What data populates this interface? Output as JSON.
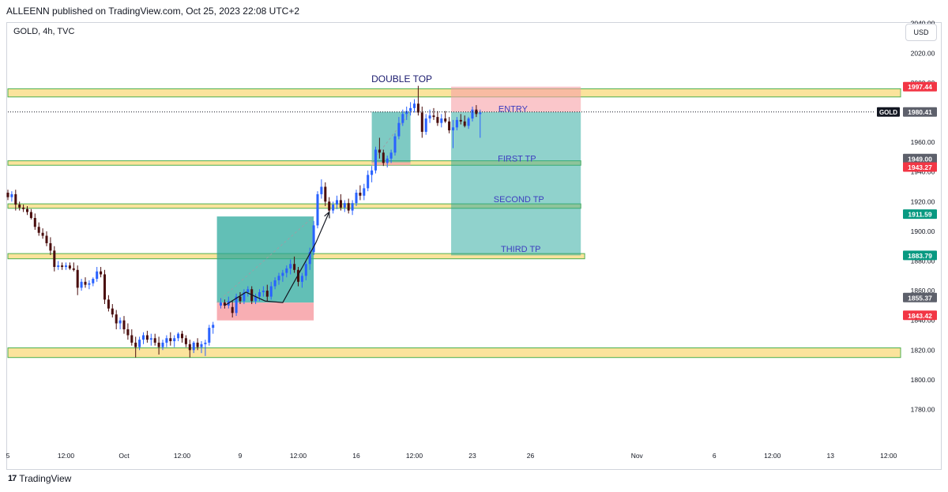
{
  "header": {
    "published": "ALLEENN published on TradingView.com, Oct 25, 2023 22:08 UTC+2"
  },
  "symbol_label": "GOLD, 4h, TVC",
  "currency_button": "USD",
  "footer": {
    "brand": "TradingView",
    "logo": "tv-logo-icon"
  },
  "chart_data": {
    "type": "candlestick",
    "symbol": "GOLD",
    "timeframe": "4h",
    "ylim": [
      1765,
      2052
    ],
    "yticks": [
      1780,
      1800,
      1820,
      1840,
      1860,
      1880,
      1900,
      1920,
      1940,
      1960,
      1980,
      2000,
      2020,
      2040
    ],
    "xticks": [
      {
        "label": "5",
        "x": 0
      },
      {
        "label": "12:00",
        "x": 3
      },
      {
        "label": "Oct",
        "x": 6
      },
      {
        "label": "12:00",
        "x": 9
      },
      {
        "label": "9",
        "x": 12
      },
      {
        "label": "12:00",
        "x": 15
      },
      {
        "label": "16",
        "x": 18
      },
      {
        "label": "12:00",
        "x": 21
      },
      {
        "label": "23",
        "x": 24
      },
      {
        "label": "26",
        "x": 27
      },
      {
        "label": "Nov",
        "x": 32.5
      },
      {
        "label": "6",
        "x": 36.5
      },
      {
        "label": "12:00",
        "x": 39.5
      },
      {
        "label": "13",
        "x": 42.5
      },
      {
        "label": "12:00",
        "x": 45.5
      }
    ],
    "candles": [
      [
        0.0,
        1926,
        1928,
        1921,
        1923
      ],
      [
        0.2,
        1923,
        1927,
        1920,
        1925
      ],
      [
        0.4,
        1925,
        1928,
        1914,
        1918
      ],
      [
        0.6,
        1918,
        1920,
        1914,
        1916
      ],
      [
        0.8,
        1916,
        1918,
        1913,
        1915
      ],
      [
        1.0,
        1915,
        1917,
        1911,
        1913
      ],
      [
        1.2,
        1913,
        1915,
        1908,
        1909
      ],
      [
        1.4,
        1909,
        1912,
        1901,
        1903
      ],
      [
        1.6,
        1903,
        1906,
        1897,
        1899
      ],
      [
        1.8,
        1899,
        1902,
        1895,
        1897
      ],
      [
        2.0,
        1897,
        1900,
        1890,
        1892
      ],
      [
        2.2,
        1892,
        1896,
        1884,
        1887
      ],
      [
        2.4,
        1887,
        1890,
        1873,
        1876
      ],
      [
        2.6,
        1876,
        1880,
        1874,
        1877
      ],
      [
        2.8,
        1877,
        1879,
        1874,
        1876
      ],
      [
        3.0,
        1876,
        1879,
        1874,
        1877
      ],
      [
        3.2,
        1877,
        1879,
        1874,
        1875
      ],
      [
        3.4,
        1875,
        1879,
        1873,
        1874
      ],
      [
        3.6,
        1874,
        1877,
        1857,
        1862
      ],
      [
        3.8,
        1862,
        1868,
        1860,
        1866
      ],
      [
        4.0,
        1866,
        1869,
        1862,
        1864
      ],
      [
        4.2,
        1864,
        1867,
        1861,
        1865
      ],
      [
        4.4,
        1865,
        1869,
        1863,
        1868
      ],
      [
        4.6,
        1868,
        1876,
        1866,
        1873
      ],
      [
        4.8,
        1873,
        1876,
        1869,
        1871
      ],
      [
        5.0,
        1871,
        1874,
        1851,
        1854
      ],
      [
        5.2,
        1854,
        1857,
        1846,
        1848
      ],
      [
        5.4,
        1848,
        1851,
        1842,
        1844
      ],
      [
        5.6,
        1844,
        1847,
        1834,
        1838
      ],
      [
        5.8,
        1838,
        1842,
        1834,
        1840
      ],
      [
        6.0,
        1840,
        1843,
        1831,
        1834
      ],
      [
        6.2,
        1834,
        1838,
        1827,
        1830
      ],
      [
        6.4,
        1830,
        1834,
        1823,
        1825
      ],
      [
        6.6,
        1825,
        1829,
        1815,
        1822
      ],
      [
        6.8,
        1822,
        1829,
        1820,
        1827
      ],
      [
        7.0,
        1827,
        1832,
        1824,
        1830
      ],
      [
        7.2,
        1830,
        1833,
        1825,
        1827
      ],
      [
        7.4,
        1827,
        1831,
        1823,
        1828
      ],
      [
        7.6,
        1828,
        1831,
        1823,
        1825
      ],
      [
        7.8,
        1825,
        1829,
        1817,
        1822
      ],
      [
        8.0,
        1822,
        1827,
        1820,
        1825
      ],
      [
        8.2,
        1825,
        1830,
        1822,
        1828
      ],
      [
        8.4,
        1828,
        1832,
        1823,
        1826
      ],
      [
        8.6,
        1826,
        1830,
        1822,
        1828
      ],
      [
        8.8,
        1828,
        1832,
        1826,
        1831
      ],
      [
        9.0,
        1831,
        1833,
        1825,
        1828
      ],
      [
        9.2,
        1828,
        1830,
        1822,
        1824
      ],
      [
        9.4,
        1824,
        1827,
        1815,
        1820
      ],
      [
        9.6,
        1820,
        1826,
        1818,
        1825
      ],
      [
        9.8,
        1825,
        1828,
        1820,
        1822
      ],
      [
        10.0,
        1822,
        1826,
        1818,
        1824
      ],
      [
        10.2,
        1824,
        1827,
        1816,
        1825
      ],
      [
        10.4,
        1825,
        1837,
        1823,
        1835
      ],
      [
        10.6,
        1835,
        1839,
        1831,
        1837
      ],
      [
        11.0,
        1850,
        1855,
        1848,
        1852
      ],
      [
        11.2,
        1852,
        1854,
        1848,
        1850
      ],
      [
        11.4,
        1850,
        1856,
        1848,
        1853
      ],
      [
        11.6,
        1849,
        1853,
        1842,
        1845
      ],
      [
        11.8,
        1845,
        1858,
        1843,
        1856
      ],
      [
        12.0,
        1856,
        1859,
        1851,
        1853
      ],
      [
        12.2,
        1853,
        1861,
        1851,
        1859
      ],
      [
        12.4,
        1859,
        1863,
        1856,
        1861
      ],
      [
        12.6,
        1861,
        1863,
        1851,
        1853
      ],
      [
        12.8,
        1853,
        1858,
        1851,
        1856
      ],
      [
        13.0,
        1856,
        1861,
        1853,
        1859
      ],
      [
        13.2,
        1859,
        1863,
        1856,
        1860
      ],
      [
        13.4,
        1860,
        1864,
        1853,
        1856
      ],
      [
        13.6,
        1856,
        1866,
        1854,
        1863
      ],
      [
        13.8,
        1863,
        1869,
        1861,
        1867
      ],
      [
        14.0,
        1867,
        1872,
        1864,
        1870
      ],
      [
        14.2,
        1870,
        1874,
        1866,
        1872
      ],
      [
        14.4,
        1872,
        1877,
        1869,
        1875
      ],
      [
        14.6,
        1875,
        1881,
        1871,
        1878
      ],
      [
        14.8,
        1878,
        1883,
        1872,
        1874
      ],
      [
        15.0,
        1874,
        1876,
        1863,
        1866
      ],
      [
        15.2,
        1866,
        1872,
        1862,
        1870
      ],
      [
        15.4,
        1870,
        1880,
        1867,
        1878
      ],
      [
        15.6,
        1878,
        1889,
        1874,
        1886
      ],
      [
        15.8,
        1886,
        1907,
        1884,
        1904
      ],
      [
        16.0,
        1904,
        1927,
        1902,
        1925
      ],
      [
        16.2,
        1925,
        1935,
        1922,
        1930
      ],
      [
        16.4,
        1930,
        1933,
        1917,
        1920
      ],
      [
        16.6,
        1920,
        1923,
        1912,
        1914
      ],
      [
        16.8,
        1914,
        1920,
        1912,
        1918
      ],
      [
        17.0,
        1918,
        1924,
        1915,
        1921
      ],
      [
        17.2,
        1921,
        1925,
        1914,
        1916
      ],
      [
        17.4,
        1916,
        1921,
        1913,
        1919
      ],
      [
        17.6,
        1919,
        1922,
        1912,
        1914
      ],
      [
        17.8,
        1914,
        1921,
        1911,
        1919
      ],
      [
        18.0,
        1919,
        1928,
        1917,
        1926
      ],
      [
        18.2,
        1926,
        1931,
        1921,
        1924
      ],
      [
        18.4,
        1924,
        1932,
        1921,
        1929
      ],
      [
        18.6,
        1929,
        1941,
        1927,
        1938
      ],
      [
        18.8,
        1938,
        1944,
        1933,
        1941
      ],
      [
        19.0,
        1941,
        1957,
        1939,
        1955
      ],
      [
        19.2,
        1955,
        1963,
        1949,
        1953
      ],
      [
        19.4,
        1953,
        1955,
        1944,
        1946
      ],
      [
        19.6,
        1946,
        1951,
        1943,
        1949
      ],
      [
        19.8,
        1949,
        1955,
        1946,
        1953
      ],
      [
        20.0,
        1953,
        1966,
        1951,
        1964
      ],
      [
        20.2,
        1964,
        1977,
        1962,
        1973
      ],
      [
        20.4,
        1973,
        1982,
        1971,
        1979
      ],
      [
        20.6,
        1979,
        1984,
        1975,
        1981
      ],
      [
        20.8,
        1981,
        1987,
        1978,
        1983
      ],
      [
        21.0,
        1983,
        1989,
        1980,
        1986
      ],
      [
        21.2,
        1986,
        1998,
        1978,
        1980
      ],
      [
        21.4,
        1980,
        1984,
        1963,
        1967
      ],
      [
        21.6,
        1967,
        1979,
        1965,
        1976
      ],
      [
        21.8,
        1976,
        1982,
        1973,
        1978
      ],
      [
        22.0,
        1978,
        1983,
        1975,
        1977
      ],
      [
        22.2,
        1977,
        1981,
        1971,
        1973
      ],
      [
        22.4,
        1973,
        1979,
        1970,
        1976
      ],
      [
        22.6,
        1976,
        1981,
        1973,
        1974
      ],
      [
        22.8,
        1974,
        1977,
        1966,
        1968
      ],
      [
        23.0,
        1968,
        1975,
        1956,
        1970
      ],
      [
        23.2,
        1970,
        1977,
        1968,
        1975
      ],
      [
        23.4,
        1975,
        1979,
        1972,
        1974
      ],
      [
        23.6,
        1974,
        1978,
        1970,
        1971
      ],
      [
        23.8,
        1971,
        1977,
        1969,
        1976
      ],
      [
        24.0,
        1976,
        1984,
        1974,
        1982
      ],
      [
        24.2,
        1982,
        1985,
        1977,
        1979
      ],
      [
        24.4,
        1979,
        1982,
        1963,
        1980
      ]
    ],
    "zones": [
      {
        "name": "resistance-zone",
        "y0": 1990.5,
        "y1": 1996,
        "x0": -1,
        "x1": 47.8,
        "color": "#fbe39c"
      },
      {
        "name": "first-tp-zone",
        "y0": 1944.5,
        "y1": 1947.5,
        "x0": -1,
        "x1": 29.6,
        "color": "#fbe39c"
      },
      {
        "name": "second-tp-zone",
        "y0": 1915.5,
        "y1": 1918.5,
        "x0": -1,
        "x1": 29.6,
        "color": "#fbe39c"
      },
      {
        "name": "third-tp-zone",
        "y0": 1881.5,
        "y1": 1885,
        "x0": -1,
        "x1": 29.8,
        "color": "#fbe39c"
      },
      {
        "name": "support-zone",
        "y0": 1815,
        "y1": 1821.5,
        "x0": -1,
        "x1": 47.8,
        "color": "#fbe39c"
      }
    ],
    "positions": [
      {
        "name": "long-position-1",
        "x0": 10.8,
        "x1": 15.8,
        "entry": 1852,
        "target": 1910,
        "stop": 1840,
        "opacity": 0.85
      },
      {
        "name": "long-position-2",
        "x0": 18.8,
        "x1": 20.8,
        "entry": 1946.5,
        "target": 1980.5,
        "stop": 1944.5,
        "opacity": 0.7
      },
      {
        "name": "short-position",
        "x0": 22.9,
        "x1": 29.6,
        "entry": 1980.41,
        "target": 1883.79,
        "stop": 1997.44,
        "opacity": 0.6
      }
    ],
    "path_points": [
      [
        11.2,
        1850
      ],
      [
        12.3,
        1859
      ],
      [
        13.3,
        1853
      ],
      [
        14.2,
        1852
      ],
      [
        15.9,
        1892
      ]
    ],
    "arrow_points": [
      [
        15.9,
        1892
      ],
      [
        16.6,
        1913
      ]
    ],
    "annotations": [
      {
        "text": "DOUBLE TOP",
        "x": 20.35,
        "y": 2000.5,
        "color": "#1a1a6e"
      },
      {
        "text": "ENTRY",
        "x": 26.1,
        "y": 1980.5,
        "color": "#3d3dbf"
      },
      {
        "text": "FIRST TP",
        "x": 26.3,
        "y": 1947,
        "color": "#3d3dbf"
      },
      {
        "text": "SECOND TP",
        "x": 26.4,
        "y": 1919.5,
        "color": "#3d3dbf"
      },
      {
        "text": "THIRD TP",
        "x": 26.5,
        "y": 1886,
        "color": "#3d3dbf"
      }
    ],
    "price_labels": [
      {
        "value": "1997.44",
        "y": 1997.44,
        "color": "#f23645"
      },
      {
        "value": "1980.41",
        "y": 1980.41,
        "color": "#5d606b"
      },
      {
        "value": "1949.00",
        "y": 1949.0,
        "color": "#5d606b"
      },
      {
        "value": "1943.27",
        "y": 1943.27,
        "color": "#f23645"
      },
      {
        "value": "1911.59",
        "y": 1911.59,
        "color": "#089981"
      },
      {
        "value": "1883.79",
        "y": 1883.79,
        "color": "#089981"
      },
      {
        "value": "1855.37",
        "y": 1855.37,
        "color": "#5d606b"
      },
      {
        "value": "1843.42",
        "y": 1843.42,
        "color": "#f23645"
      }
    ],
    "current_price": {
      "symbol_tag": "GOLD",
      "value": 1980.41
    },
    "colors": {
      "up": "#2962ff",
      "down": "#4a0e0e",
      "profit": "#26a69a",
      "loss": "#f7a0a6",
      "zone": "#fbe39c",
      "zone_border": "#4caf50"
    }
  }
}
